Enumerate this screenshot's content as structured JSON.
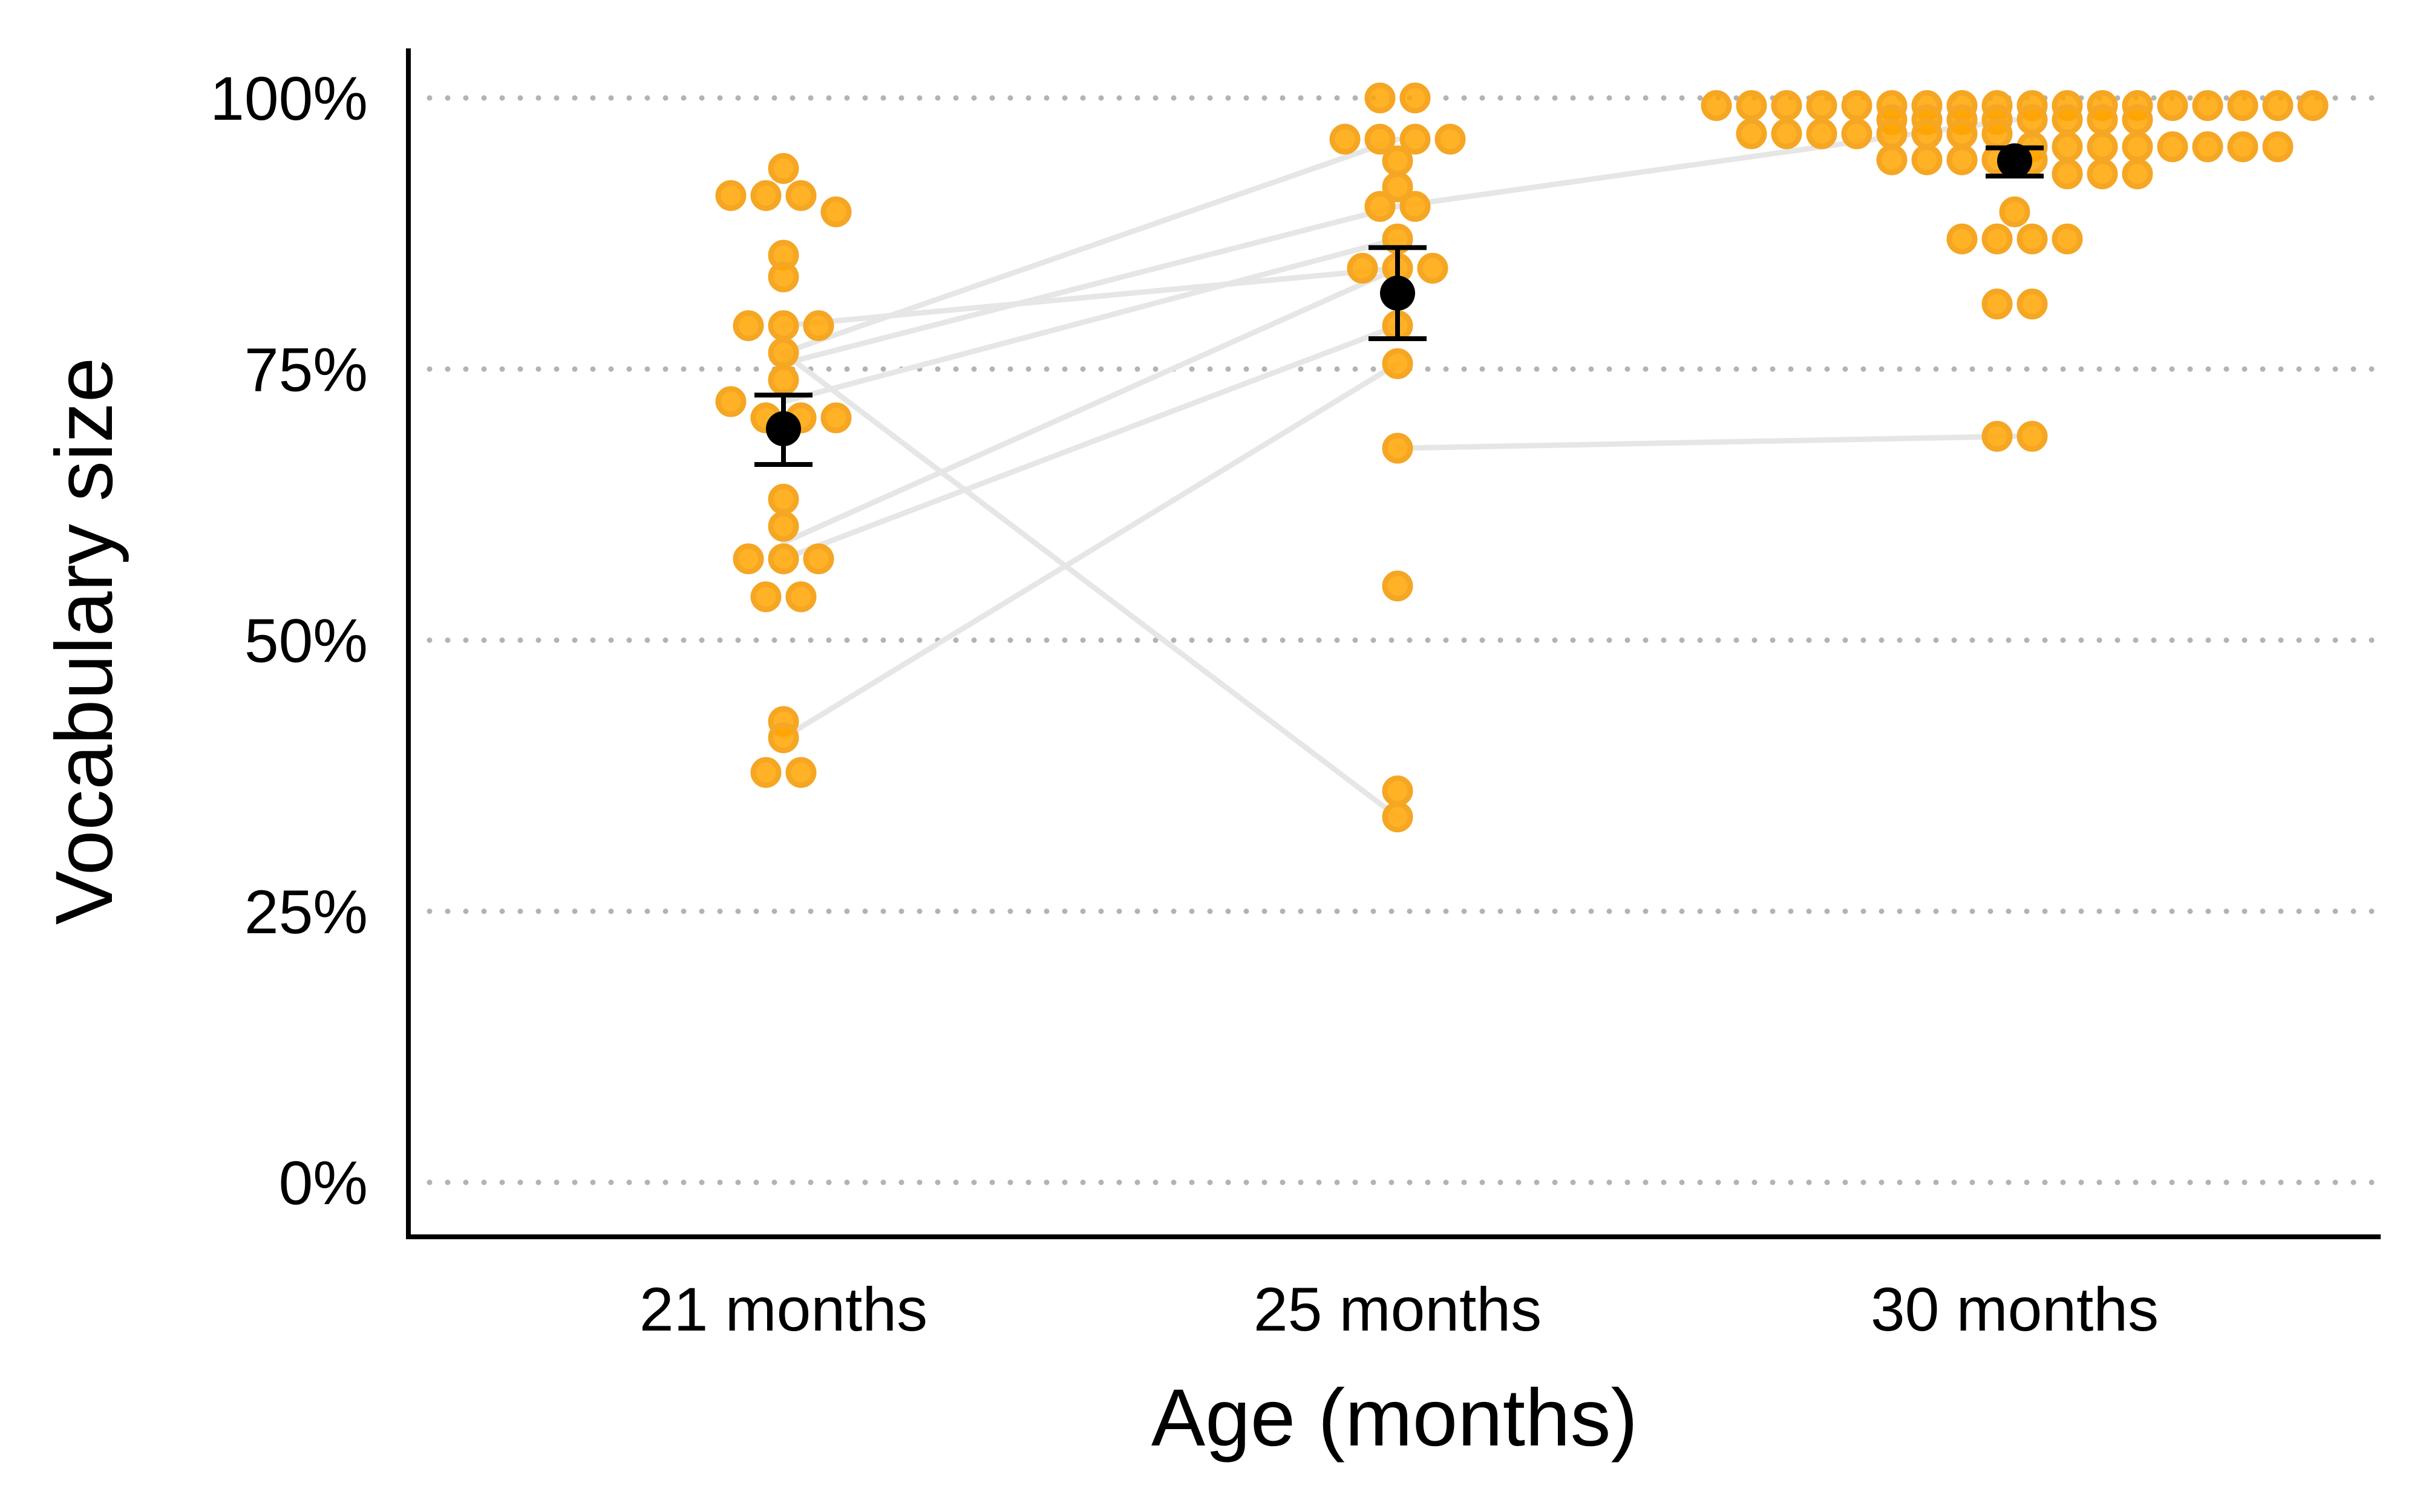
{
  "chart_data": {
    "type": "scatter",
    "xlabel": "Age (months)",
    "ylabel": "Vocabulary size",
    "categories": [
      "21 months",
      "25 months",
      "30 months"
    ],
    "ylim": [
      0,
      1
    ],
    "y_ticks": [
      {
        "value": 0,
        "label": "0%"
      },
      {
        "value": 0.25,
        "label": "25%"
      },
      {
        "value": 0.5,
        "label": "50%"
      },
      {
        "value": 0.75,
        "label": "75%"
      },
      {
        "value": 1,
        "label": "100%"
      }
    ],
    "grid": "horizontal dotted",
    "colors": {
      "points": "#FFA500",
      "point_edge": "#F5A623",
      "mean": "#000000",
      "lines": "#E6E6E6",
      "grid": "#B3B3B3"
    },
    "groups": [
      {
        "category": "21 months",
        "values": [
          0.935,
          0.91,
          0.91,
          0.91,
          0.895,
          0.855,
          0.835,
          0.79,
          0.79,
          0.79,
          0.765,
          0.74,
          0.72,
          0.705,
          0.705,
          0.705,
          0.63,
          0.605,
          0.575,
          0.575,
          0.575,
          0.54,
          0.54,
          0.425,
          0.41,
          0.378,
          0.378
        ],
        "mean": 0.695,
        "error_low": 0.662,
        "error_high": 0.726
      },
      {
        "category": "25 months",
        "values": [
          1.0,
          1.0,
          0.962,
          0.962,
          0.962,
          0.962,
          0.942,
          0.918,
          0.9,
          0.9,
          0.87,
          0.843,
          0.843,
          0.843,
          0.79,
          0.755,
          0.677,
          0.55,
          0.361,
          0.337
        ],
        "mean": 0.82,
        "error_low": 0.778,
        "error_high": 0.862
      },
      {
        "category": "30 months",
        "values": [
          0.993,
          0.993,
          0.993,
          0.993,
          0.993,
          0.993,
          0.993,
          0.993,
          0.993,
          0.993,
          0.993,
          0.993,
          0.993,
          0.993,
          0.993,
          0.993,
          0.993,
          0.993,
          0.98,
          0.98,
          0.98,
          0.98,
          0.98,
          0.98,
          0.98,
          0.98,
          0.967,
          0.967,
          0.967,
          0.967,
          0.967,
          0.967,
          0.967,
          0.967,
          0.955,
          0.955,
          0.955,
          0.955,
          0.955,
          0.955,
          0.955,
          0.955,
          0.943,
          0.943,
          0.943,
          0.943,
          0.943,
          0.93,
          0.93,
          0.93,
          0.895,
          0.87,
          0.87,
          0.87,
          0.87,
          0.81,
          0.81,
          0.688,
          0.688
        ],
        "mean": 0.942,
        "error_low": 0.928,
        "error_high": 0.954
      }
    ],
    "paired_lines": [
      [
        {
          "category": "21 months",
          "y": 0.79
        },
        {
          "category": "25 months",
          "y": 0.843
        }
      ],
      [
        {
          "category": "21 months",
          "y": 0.765
        },
        {
          "category": "25 months",
          "y": 0.962
        }
      ],
      [
        {
          "category": "21 months",
          "y": 0.755
        },
        {
          "category": "25 months",
          "y": 0.9
        }
      ],
      [
        {
          "category": "21 months",
          "y": 0.72
        },
        {
          "category": "25 months",
          "y": 0.87
        }
      ],
      [
        {
          "category": "21 months",
          "y": 0.59
        },
        {
          "category": "25 months",
          "y": 0.843
        }
      ],
      [
        {
          "category": "21 months",
          "y": 0.575
        },
        {
          "category": "25 months",
          "y": 0.79
        }
      ],
      [
        {
          "category": "21 months",
          "y": 0.41
        },
        {
          "category": "25 months",
          "y": 0.755
        }
      ],
      [
        {
          "category": "21 months",
          "y": 0.765
        },
        {
          "category": "25 months",
          "y": 0.337
        }
      ],
      [
        {
          "category": "25 months",
          "y": 0.9
        },
        {
          "category": "30 months",
          "y": 0.98
        }
      ],
      [
        {
          "category": "25 months",
          "y": 0.677
        },
        {
          "category": "30 months",
          "y": 0.688
        }
      ]
    ]
  }
}
